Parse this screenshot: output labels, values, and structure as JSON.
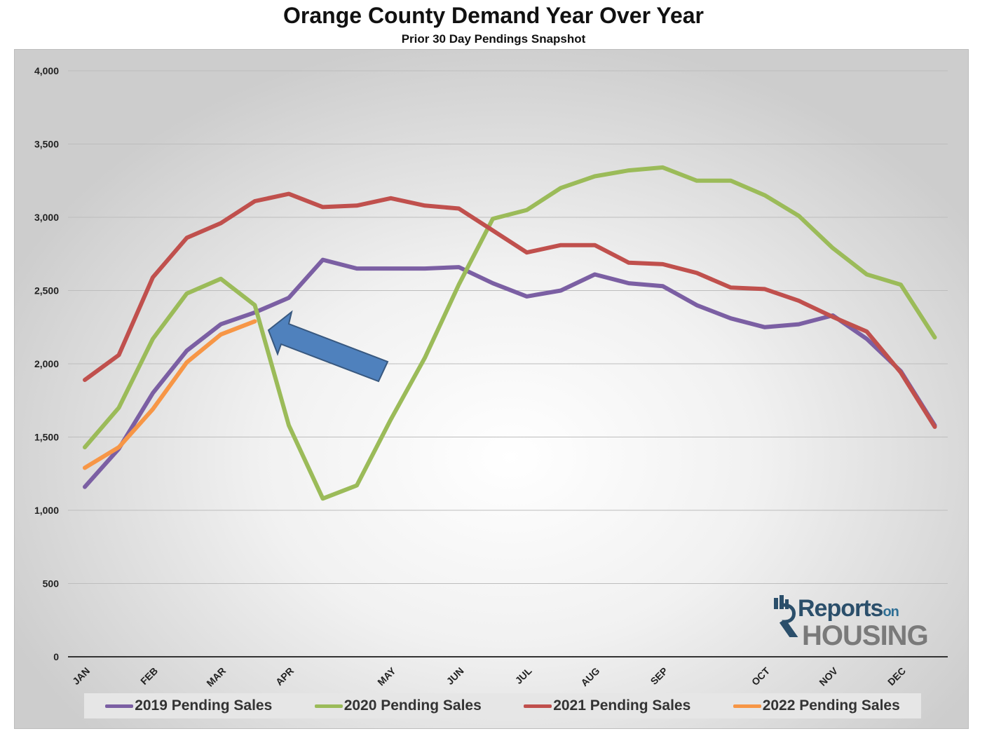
{
  "title": "Orange County Demand Year Over Year",
  "subtitle": "Prior 30 Day Pendings Snapshot",
  "logo": {
    "line1": "Reports",
    "line1_small": "on",
    "line2": "HOUSING"
  },
  "chart_data": {
    "type": "line",
    "title": "Orange County Demand Year Over Year",
    "subtitle": "Prior 30 Day Pendings Snapshot",
    "xlabel": "",
    "ylabel": "",
    "ylim": [
      0,
      4000
    ],
    "y_ticks": [
      "0",
      "500",
      "1,000",
      "1,500",
      "2,000",
      "2,500",
      "3,000",
      "3,500",
      "4,000"
    ],
    "y_tick_values": [
      0,
      500,
      1000,
      1500,
      2000,
      2500,
      3000,
      3500,
      4000
    ],
    "x_periods": 25,
    "x_ticks": [
      {
        "label": "JAN",
        "index": 0
      },
      {
        "label": "FEB",
        "index": 2
      },
      {
        "label": "MAR",
        "index": 4
      },
      {
        "label": "APR",
        "index": 6
      },
      {
        "label": "MAY",
        "index": 9
      },
      {
        "label": "JUN",
        "index": 11
      },
      {
        "label": "JUL",
        "index": 13
      },
      {
        "label": "AUG",
        "index": 15
      },
      {
        "label": "SEP",
        "index": 17
      },
      {
        "label": "OCT",
        "index": 20
      },
      {
        "label": "NOV",
        "index": 22
      },
      {
        "label": "DEC",
        "index": 24
      }
    ],
    "grid": true,
    "legend_position": "bottom",
    "series": [
      {
        "name": "2019 Pending Sales",
        "color": "#7b5fa3",
        "values": [
          1160,
          1420,
          1800,
          2090,
          2270,
          2350,
          2450,
          2710,
          2650,
          2650,
          2650,
          2660,
          2550,
          2460,
          2500,
          2610,
          2550,
          2530,
          2400,
          2310,
          2250,
          2270,
          2330,
          2170,
          1950,
          1580
        ]
      },
      {
        "name": "2020 Pending Sales",
        "color": "#9bbb59",
        "values": [
          1430,
          1700,
          2170,
          2480,
          2580,
          2400,
          1580,
          1080,
          1170,
          1620,
          2040,
          2540,
          2990,
          3050,
          3200,
          3280,
          3320,
          3340,
          3250,
          3250,
          3150,
          3010,
          2790,
          2610,
          2540,
          2180
        ]
      },
      {
        "name": "2021 Pending Sales",
        "color": "#c0504d",
        "values": [
          1890,
          2060,
          2590,
          2860,
          2960,
          3110,
          3160,
          3070,
          3080,
          3130,
          3080,
          3060,
          2910,
          2760,
          2810,
          2810,
          2690,
          2680,
          2620,
          2520,
          2510,
          2430,
          2320,
          2220,
          1940,
          1570
        ]
      },
      {
        "name": "2022 Pending Sales",
        "color": "#f79646",
        "values": [
          1290,
          1430,
          1690,
          2010,
          2200,
          2290
        ]
      }
    ],
    "annotations": [
      {
        "type": "arrow",
        "color": "#4f81bd",
        "points_to_series": "2022 Pending Sales"
      }
    ]
  }
}
